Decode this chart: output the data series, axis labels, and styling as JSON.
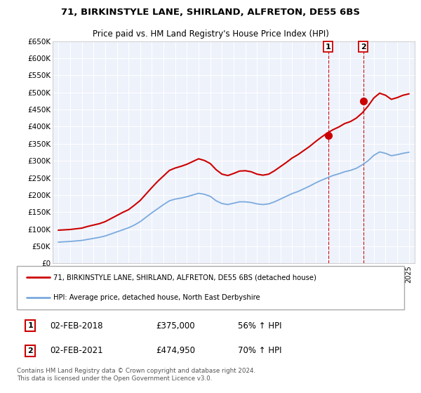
{
  "title_line1": "71, BIRKINSTYLE LANE, SHIRLAND, ALFRETON, DE55 6BS",
  "title_line2": "Price paid vs. HM Land Registry's House Price Index (HPI)",
  "ylabel_ticks": [
    "£0",
    "£50K",
    "£100K",
    "£150K",
    "£200K",
    "£250K",
    "£300K",
    "£350K",
    "£400K",
    "£450K",
    "£500K",
    "£550K",
    "£600K",
    "£650K"
  ],
  "ytick_vals": [
    0,
    50000,
    100000,
    150000,
    200000,
    250000,
    300000,
    350000,
    400000,
    450000,
    500000,
    550000,
    600000,
    650000
  ],
  "xlim": [
    1994.5,
    2025.5
  ],
  "ylim": [
    0,
    650000
  ],
  "background_color": "#eef2fb",
  "grid_color": "#ffffff",
  "red_color": "#cc0000",
  "blue_color": "#7aaadd",
  "marker1_x": 2018.09,
  "marker1_y": 375000,
  "marker2_x": 2021.09,
  "marker2_y": 474950,
  "marker1_label": "1",
  "marker2_label": "2",
  "annotation1": [
    "1",
    "02-FEB-2018",
    "£375,000",
    "56% ↑ HPI"
  ],
  "annotation2": [
    "2",
    "02-FEB-2021",
    "£474,950",
    "70% ↑ HPI"
  ],
  "legend_line1": "71, BIRKINSTYLE LANE, SHIRLAND, ALFRETON, DE55 6BS (detached house)",
  "legend_line2": "HPI: Average price, detached house, North East Derbyshire",
  "footer": "Contains HM Land Registry data © Crown copyright and database right 2024.\nThis data is licensed under the Open Government Licence v3.0.",
  "hpi_x": [
    1995,
    1995.5,
    1996,
    1996.5,
    1997,
    1997.5,
    1998,
    1998.5,
    1999,
    1999.5,
    2000,
    2000.5,
    2001,
    2001.5,
    2002,
    2002.5,
    2003,
    2003.5,
    2004,
    2004.5,
    2005,
    2005.5,
    2006,
    2006.5,
    2007,
    2007.5,
    2008,
    2008.5,
    2009,
    2009.5,
    2010,
    2010.5,
    2011,
    2011.5,
    2012,
    2012.5,
    2013,
    2013.5,
    2014,
    2014.5,
    2015,
    2015.5,
    2016,
    2016.5,
    2017,
    2017.5,
    2018,
    2018.5,
    2019,
    2019.5,
    2020,
    2020.5,
    2021,
    2021.5,
    2022,
    2022.5,
    2023,
    2023.5,
    2024,
    2024.5,
    2025
  ],
  "hpi_y": [
    62000,
    63000,
    64000,
    65500,
    67000,
    70000,
    73000,
    76000,
    80000,
    86000,
    92000,
    98000,
    104000,
    112000,
    122000,
    135000,
    148000,
    160000,
    172000,
    183000,
    188000,
    191000,
    195000,
    200000,
    205000,
    202000,
    196000,
    183000,
    175000,
    172000,
    176000,
    180000,
    180000,
    178000,
    174000,
    172000,
    174000,
    180000,
    188000,
    196000,
    204000,
    210000,
    218000,
    226000,
    235000,
    243000,
    250000,
    257000,
    262000,
    268000,
    272000,
    278000,
    288000,
    300000,
    316000,
    326000,
    322000,
    315000,
    318000,
    322000,
    325000
  ],
  "red_x": [
    1995,
    1995.5,
    1996,
    1996.5,
    1997,
    1997.5,
    1998,
    1998.5,
    1999,
    1999.5,
    2000,
    2000.5,
    2001,
    2001.5,
    2002,
    2002.5,
    2003,
    2003.5,
    2004,
    2004.5,
    2005,
    2005.5,
    2006,
    2006.5,
    2007,
    2007.5,
    2008,
    2008.5,
    2009,
    2009.5,
    2010,
    2010.5,
    2011,
    2011.5,
    2012,
    2012.5,
    2013,
    2013.5,
    2014,
    2014.5,
    2015,
    2015.5,
    2016,
    2016.5,
    2017,
    2017.5,
    2018,
    2018.5,
    2019,
    2019.5,
    2020,
    2020.5,
    2021,
    2021.5,
    2022,
    2022.5,
    2023,
    2023.5,
    2024,
    2024.5,
    2025
  ],
  "red_y": [
    97000,
    98000,
    99000,
    101000,
    103000,
    108000,
    112000,
    116000,
    122000,
    131000,
    140000,
    149000,
    157000,
    170000,
    184000,
    203000,
    222000,
    240000,
    256000,
    272000,
    279000,
    284000,
    290000,
    298000,
    306000,
    301000,
    292000,
    274000,
    261000,
    257000,
    263000,
    270000,
    271000,
    268000,
    261000,
    258000,
    261000,
    271000,
    283000,
    295000,
    308000,
    318000,
    330000,
    342000,
    356000,
    369000,
    381000,
    391000,
    399000,
    409000,
    415000,
    425000,
    440000,
    460000,
    484000,
    498000,
    492000,
    480000,
    485000,
    492000,
    496000
  ]
}
